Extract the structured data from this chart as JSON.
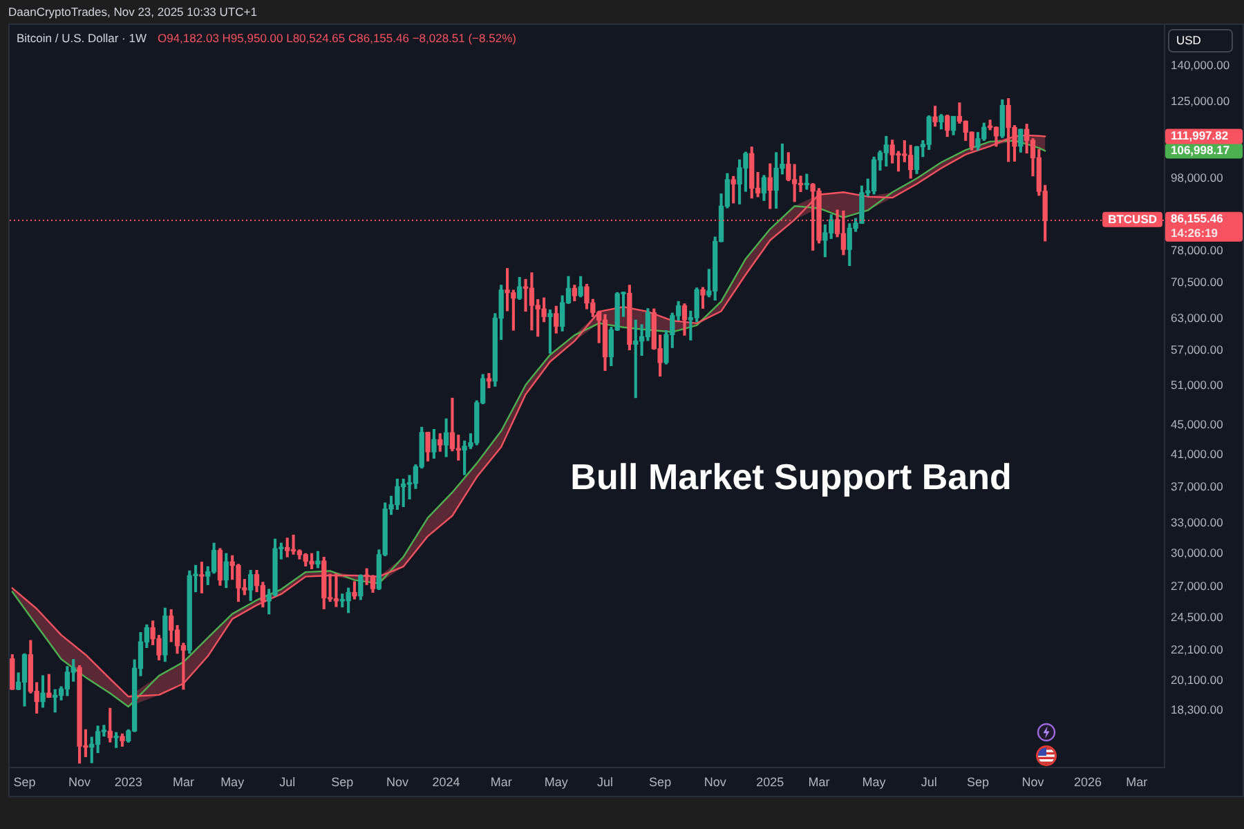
{
  "chart_data": {
    "type": "candlestick",
    "title": "Bitcoin / U.S. Dollar · 1W",
    "subtitle": "O94,182.03 H95,950.00 L80,524.65 C86,155.46 −8,028.51 (−8.52%)",
    "ylabel": "USD",
    "annotations": [
      "DaanCryptoTrades, Nov 23, 2025 10:33 UTC+1",
      "Bull Market Support Band",
      "14:26:19"
    ],
    "x": [
      "2022-08-22",
      "2022-08-29",
      "2022-09-05",
      "2022-09-12",
      "2022-09-19",
      "2022-09-26",
      "2022-10-03",
      "2022-10-10",
      "2022-10-17",
      "2022-10-24",
      "2022-10-31",
      "2022-11-07",
      "2022-11-14",
      "2022-11-21",
      "2022-11-28",
      "2022-12-05",
      "2022-12-12",
      "2022-12-19",
      "2022-12-26",
      "2023-01-02",
      "2023-01-09",
      "2023-01-16",
      "2023-01-23",
      "2023-01-30",
      "2023-02-06",
      "2023-02-13",
      "2023-02-20",
      "2023-02-27",
      "2023-03-06",
      "2023-03-13",
      "2023-03-20",
      "2023-03-27",
      "2023-04-03",
      "2023-04-10",
      "2023-04-17",
      "2023-04-24",
      "2023-05-01",
      "2023-05-08",
      "2023-05-15",
      "2023-05-22",
      "2023-05-29",
      "2023-06-05",
      "2023-06-12",
      "2023-06-19",
      "2023-06-26",
      "2023-07-03",
      "2023-07-10",
      "2023-07-17",
      "2023-07-24",
      "2023-07-31",
      "2023-08-07",
      "2023-08-14",
      "2023-08-21",
      "2023-08-28",
      "2023-09-04",
      "2023-09-11",
      "2023-09-18",
      "2023-09-25",
      "2023-10-02",
      "2023-10-09",
      "2023-10-16",
      "2023-10-23",
      "2023-10-30",
      "2023-11-06",
      "2023-11-13",
      "2023-11-20",
      "2023-11-27",
      "2023-12-04",
      "2023-12-11",
      "2023-12-18",
      "2023-12-25",
      "2024-01-01",
      "2024-01-08",
      "2024-01-15",
      "2024-01-22",
      "2024-01-29",
      "2024-02-05",
      "2024-02-12",
      "2024-02-19",
      "2024-02-26",
      "2024-03-04",
      "2024-03-11",
      "2024-03-18",
      "2024-03-25",
      "2024-04-01",
      "2024-04-08",
      "2024-04-15",
      "2024-04-22",
      "2024-04-29",
      "2024-05-06",
      "2024-05-13",
      "2024-05-20",
      "2024-05-27",
      "2024-06-03",
      "2024-06-10",
      "2024-06-17",
      "2024-06-24",
      "2024-07-01",
      "2024-07-08",
      "2024-07-15",
      "2024-07-22",
      "2024-07-29",
      "2024-08-05",
      "2024-08-12",
      "2024-08-19",
      "2024-08-26",
      "2024-09-02",
      "2024-09-09",
      "2024-09-16",
      "2024-09-23",
      "2024-09-30",
      "2024-10-07",
      "2024-10-14",
      "2024-10-21",
      "2024-10-28",
      "2024-11-04",
      "2024-11-11",
      "2024-11-18",
      "2024-11-25",
      "2024-12-02",
      "2024-12-09",
      "2024-12-16",
      "2024-12-23",
      "2024-12-30",
      "2025-01-06",
      "2025-01-13",
      "2025-01-20",
      "2025-01-27",
      "2025-02-03",
      "2025-02-10",
      "2025-02-17",
      "2025-02-24",
      "2025-03-03",
      "2025-03-10",
      "2025-03-17",
      "2025-03-24",
      "2025-03-31",
      "2025-04-07",
      "2025-04-14",
      "2025-04-21",
      "2025-04-28",
      "2025-05-05",
      "2025-05-12",
      "2025-05-19",
      "2025-05-26",
      "2025-06-02",
      "2025-06-09",
      "2025-06-16",
      "2025-06-23",
      "2025-06-30",
      "2025-07-07",
      "2025-07-14",
      "2025-07-21",
      "2025-07-28",
      "2025-08-04",
      "2025-08-11",
      "2025-08-18",
      "2025-08-25",
      "2025-09-01",
      "2025-09-08",
      "2025-09-15",
      "2025-09-22",
      "2025-09-29",
      "2025-10-06",
      "2025-10-13",
      "2025-10-20",
      "2025-10-27",
      "2025-11-03",
      "2025-11-10",
      "2025-11-17"
    ],
    "ohlc": [
      [
        21520,
        21800,
        19530,
        19550
      ],
      [
        19550,
        20580,
        19520,
        19990
      ],
      [
        19990,
        21860,
        18540,
        21800
      ],
      [
        21800,
        22800,
        19320,
        19420
      ],
      [
        19420,
        19960,
        18130,
        18800
      ],
      [
        18800,
        20400,
        18470,
        19310
      ],
      [
        19310,
        20480,
        19050,
        19060
      ],
      [
        19060,
        19520,
        18190,
        19180
      ],
      [
        19180,
        19700,
        18900,
        19570
      ],
      [
        19570,
        21000,
        19160,
        20630
      ],
      [
        20630,
        21470,
        20050,
        20920
      ],
      [
        20920,
        21050,
        15480,
        16330
      ],
      [
        16330,
        17200,
        15800,
        16280
      ],
      [
        16280,
        16800,
        15500,
        16430
      ],
      [
        16430,
        17400,
        16000,
        17100
      ],
      [
        17100,
        17440,
        16860,
        17120
      ],
      [
        17120,
        18400,
        16550,
        16780
      ],
      [
        16780,
        17050,
        16260,
        16840
      ],
      [
        16840,
        16970,
        16330,
        16610
      ],
      [
        16610,
        17200,
        16540,
        17130
      ],
      [
        17130,
        21450,
        17100,
        20880
      ],
      [
        20880,
        23380,
        20400,
        22700
      ],
      [
        22700,
        23950,
        22300,
        23740
      ],
      [
        23740,
        24250,
        22500,
        22930
      ],
      [
        22930,
        23170,
        21450,
        21790
      ],
      [
        21790,
        25250,
        21350,
        24630
      ],
      [
        24630,
        25130,
        22720,
        23560
      ],
      [
        23560,
        23900,
        21900,
        22430
      ],
      [
        22430,
        22600,
        19550,
        22120
      ],
      [
        22120,
        28400,
        21900,
        27980
      ],
      [
        27980,
        28900,
        26600,
        27990
      ],
      [
        27990,
        29200,
        26500,
        27940
      ],
      [
        27940,
        28780,
        27200,
        28330
      ],
      [
        28330,
        31000,
        28200,
        30300
      ],
      [
        30300,
        30480,
        27150,
        27600
      ],
      [
        27600,
        30000,
        26950,
        29230
      ],
      [
        29230,
        29800,
        27660,
        28900
      ],
      [
        28900,
        29000,
        25800,
        26920
      ],
      [
        26920,
        27650,
        26350,
        26750
      ],
      [
        26750,
        28450,
        25870,
        28070
      ],
      [
        28070,
        28450,
        26600,
        27120
      ],
      [
        27120,
        27400,
        25350,
        25840
      ],
      [
        25840,
        26800,
        24800,
        26340
      ],
      [
        26340,
        31400,
        26250,
        30470
      ],
      [
        30470,
        31000,
        29500,
        30580
      ],
      [
        30580,
        31500,
        29700,
        30280
      ],
      [
        30280,
        31800,
        29950,
        30250
      ],
      [
        30250,
        30350,
        29500,
        29900
      ],
      [
        29900,
        29990,
        28850,
        29280
      ],
      [
        29280,
        30000,
        28600,
        29030
      ],
      [
        29030,
        30200,
        28700,
        29300
      ],
      [
        29300,
        29650,
        25200,
        26090
      ],
      [
        26090,
        28100,
        25800,
        26000
      ],
      [
        26000,
        28150,
        25380,
        25840
      ],
      [
        25840,
        26400,
        25350,
        25850
      ],
      [
        25850,
        26900,
        24900,
        26530
      ],
      [
        26530,
        27450,
        26000,
        26250
      ],
      [
        26250,
        28050,
        25950,
        27970
      ],
      [
        27970,
        28600,
        27200,
        27920
      ],
      [
        27920,
        28000,
        26550,
        26860
      ],
      [
        26860,
        30350,
        26780,
        29900
      ],
      [
        29900,
        35200,
        29800,
        34530
      ],
      [
        34530,
        35950,
        33950,
        35010
      ],
      [
        35010,
        37950,
        34500,
        37060
      ],
      [
        37060,
        37950,
        34800,
        37360
      ],
      [
        37360,
        38400,
        35650,
        37450
      ],
      [
        37450,
        39700,
        36850,
        39460
      ],
      [
        39460,
        44700,
        39300,
        43980
      ],
      [
        43980,
        44000,
        40200,
        41370
      ],
      [
        41370,
        44400,
        40550,
        43000
      ],
      [
        43000,
        43800,
        41450,
        42280
      ],
      [
        42280,
        45900,
        40750,
        43940
      ],
      [
        43940,
        49000,
        41500,
        41800
      ],
      [
        41800,
        43600,
        40300,
        41600
      ],
      [
        41600,
        42800,
        38500,
        42100
      ],
      [
        42100,
        43800,
        41800,
        42580
      ],
      [
        42580,
        48600,
        42300,
        48300
      ],
      [
        48300,
        52800,
        48150,
        52120
      ],
      [
        52120,
        52980,
        50650,
        51730
      ],
      [
        51730,
        64000,
        50900,
        63100
      ],
      [
        63100,
        70000,
        59000,
        68950
      ],
      [
        68950,
        73800,
        64600,
        68370
      ],
      [
        68370,
        68900,
        60750,
        67200
      ],
      [
        67200,
        71750,
        66950,
        69640
      ],
      [
        69640,
        71300,
        64500,
        69350
      ],
      [
        69350,
        72800,
        60800,
        65700
      ],
      [
        65700,
        66900,
        59600,
        64950
      ],
      [
        64950,
        67250,
        62400,
        63400
      ],
      [
        63400,
        64750,
        56500,
        64000
      ],
      [
        64000,
        65500,
        60200,
        61500
      ],
      [
        61500,
        67700,
        60600,
        66250
      ],
      [
        66250,
        71950,
        66100,
        69300
      ],
      [
        69300,
        70000,
        66650,
        67750
      ],
      [
        67750,
        71950,
        67500,
        69650
      ],
      [
        69650,
        70200,
        65000,
        66200
      ],
      [
        66200,
        66950,
        63400,
        64250
      ],
      [
        64250,
        64500,
        58400,
        62700
      ],
      [
        62700,
        63800,
        53500,
        55850
      ],
      [
        55850,
        61300,
        54300,
        60800
      ],
      [
        60800,
        68400,
        60700,
        68150
      ],
      [
        68150,
        68500,
        63450,
        68250
      ],
      [
        68250,
        70000,
        57100,
        58100
      ],
      [
        58100,
        62700,
        49100,
        58700
      ],
      [
        58700,
        61800,
        56100,
        59500
      ],
      [
        59500,
        65000,
        58800,
        64200
      ],
      [
        64200,
        64950,
        57200,
        57300
      ],
      [
        57300,
        59800,
        52550,
        54850
      ],
      [
        54850,
        60650,
        54600,
        59900
      ],
      [
        59900,
        64100,
        57500,
        63600
      ],
      [
        63600,
        66500,
        62700,
        65600
      ],
      [
        65600,
        66000,
        59800,
        62800
      ],
      [
        62800,
        64500,
        58900,
        63200
      ],
      [
        63200,
        69400,
        62400,
        69000
      ],
      [
        69000,
        69500,
        65100,
        67900
      ],
      [
        67900,
        73600,
        67500,
        68750
      ],
      [
        68750,
        81500,
        66800,
        80400
      ],
      [
        80400,
        93400,
        80300,
        89850
      ],
      [
        89850,
        99600,
        89400,
        97700
      ],
      [
        97700,
        98700,
        90800,
        96400
      ],
      [
        96400,
        104000,
        90500,
        101400
      ],
      [
        101400,
        106550,
        94200,
        106100
      ],
      [
        106100,
        108300,
        92200,
        95100
      ],
      [
        95100,
        99950,
        92600,
        93700
      ],
      [
        93700,
        99000,
        91500,
        98300
      ],
      [
        98300,
        102700,
        89200,
        94500
      ],
      [
        94500,
        106400,
        89300,
        101300
      ],
      [
        101300,
        109350,
        99500,
        102600
      ],
      [
        102600,
        106400,
        97400,
        97700
      ],
      [
        97700,
        102500,
        91200,
        96500
      ],
      [
        96500,
        98800,
        94100,
        96150
      ],
      [
        96150,
        99400,
        94800,
        96250
      ],
      [
        96250,
        96500,
        78200,
        94250
      ],
      [
        94250,
        95000,
        80000,
        80700
      ],
      [
        80700,
        84700,
        76600,
        82600
      ],
      [
        82600,
        87450,
        81150,
        86100
      ],
      [
        86100,
        88750,
        81600,
        82400
      ],
      [
        82400,
        88500,
        77100,
        78400
      ],
      [
        78400,
        85000,
        74500,
        83800
      ],
      [
        83800,
        86450,
        83000,
        85150
      ],
      [
        85150,
        95750,
        85100,
        93750
      ],
      [
        93750,
        97900,
        92800,
        94300
      ],
      [
        94300,
        104900,
        93400,
        104000
      ],
      [
        104000,
        107000,
        100700,
        106400
      ],
      [
        106400,
        112000,
        102000,
        109000
      ],
      [
        109000,
        110700,
        103000,
        105700
      ],
      [
        105700,
        106800,
        100400,
        105600
      ],
      [
        105600,
        110500,
        103400,
        105500
      ],
      [
        105500,
        108900,
        98200,
        100900
      ],
      [
        100900,
        108500,
        99600,
        108400
      ],
      [
        108400,
        110500,
        105100,
        109200
      ],
      [
        109200,
        119500,
        107500,
        119100
      ],
      [
        119100,
        123200,
        115700,
        117300
      ],
      [
        117300,
        120000,
        114700,
        119450
      ],
      [
        119450,
        119800,
        112000,
        114200
      ],
      [
        114200,
        119300,
        112600,
        119300
      ],
      [
        119300,
        124500,
        116800,
        117500
      ],
      [
        117500,
        117600,
        110600,
        113500
      ],
      [
        113500,
        113600,
        107300,
        108300
      ],
      [
        108300,
        113400,
        107300,
        111200
      ],
      [
        111200,
        116800,
        110600,
        115300
      ],
      [
        115300,
        117900,
        114400,
        115250
      ],
      [
        115250,
        115400,
        108600,
        112200
      ],
      [
        112200,
        125700,
        111600,
        123500
      ],
      [
        123500,
        126200,
        103500,
        115200
      ],
      [
        115200,
        115900,
        103600,
        108600
      ],
      [
        108600,
        114600,
        106600,
        114500
      ],
      [
        114500,
        116400,
        106300,
        110600
      ],
      [
        110600,
        111200,
        98900,
        104700
      ],
      [
        104700,
        107500,
        93000,
        94180
      ],
      [
        94182.03,
        95950,
        80524.65,
        86155.46
      ]
    ],
    "colors": [
      "#f7525f",
      "#22ab94",
      "#22ab94",
      "#f7525f",
      "#f7525f",
      "#22ab94",
      "#f7525f",
      "#22ab94",
      "#22ab94",
      "#22ab94",
      "#22ab94",
      "#f7525f",
      "#f7525f",
      "#22ab94",
      "#22ab94",
      "#22ab94",
      "#f7525f",
      "#22ab94",
      "#f7525f",
      "#22ab94",
      "#22ab94",
      "#22ab94",
      "#22ab94",
      "#f7525f",
      "#f7525f",
      "#22ab94",
      "#f7525f",
      "#f7525f",
      "#f7525f",
      "#22ab94",
      "#22ab94",
      "#f7525f",
      "#22ab94",
      "#22ab94",
      "#f7525f",
      "#22ab94",
      "#f7525f",
      "#f7525f",
      "#f7525f",
      "#22ab94",
      "#f7525f",
      "#f7525f",
      "#22ab94",
      "#22ab94",
      "#22ab94",
      "#f7525f",
      "#f7525f",
      "#f7525f",
      "#f7525f",
      "#f7525f",
      "#22ab94",
      "#f7525f",
      "#f7525f",
      "#f7525f",
      "#22ab94",
      "#22ab94",
      "#f7525f",
      "#22ab94",
      "#f7525f",
      "#f7525f",
      "#22ab94",
      "#22ab94",
      "#22ab94",
      "#22ab94",
      "#22ab94",
      "#22ab94",
      "#22ab94",
      "#22ab94",
      "#f7525f",
      "#22ab94",
      "#f7525f",
      "#22ab94",
      "#f7525f",
      "#f7525f",
      "#22ab94",
      "#22ab94",
      "#22ab94",
      "#22ab94",
      "#f7525f",
      "#22ab94",
      "#22ab94",
      "#f7525f",
      "#f7525f",
      "#22ab94",
      "#f7525f",
      "#f7525f",
      "#f7525f",
      "#f7525f",
      "#22ab94",
      "#f7525f",
      "#22ab94",
      "#22ab94",
      "#f7525f",
      "#22ab94",
      "#f7525f",
      "#f7525f",
      "#f7525f",
      "#f7525f",
      "#22ab94",
      "#22ab94",
      "#22ab94",
      "#f7525f",
      "#22ab94",
      "#22ab94",
      "#22ab94",
      "#f7525f",
      "#f7525f",
      "#22ab94",
      "#22ab94",
      "#22ab94",
      "#f7525f",
      "#22ab94",
      "#22ab94",
      "#f7525f",
      "#22ab94",
      "#22ab94",
      "#22ab94",
      "#22ab94",
      "#f7525f",
      "#22ab94",
      "#22ab94",
      "#f7525f",
      "#f7525f",
      "#22ab94",
      "#f7525f",
      "#22ab94",
      "#22ab94",
      "#f7525f",
      "#f7525f",
      "#f7525f",
      "#22ab94",
      "#f7525f",
      "#f7525f",
      "#22ab94",
      "#22ab94",
      "#f7525f",
      "#f7525f",
      "#22ab94",
      "#22ab94",
      "#22ab94",
      "#22ab94",
      "#22ab94",
      "#22ab94",
      "#22ab94",
      "#f7525f",
      "#f7525f",
      "#f7525f",
      "#f7525f",
      "#22ab94",
      "#22ab94",
      "#22ab94",
      "#f7525f",
      "#22ab94",
      "#f7525f",
      "#22ab94",
      "#f7525f",
      "#f7525f",
      "#f7525f",
      "#22ab94",
      "#22ab94",
      "#f7525f",
      "#f7525f",
      "#22ab94",
      "#f7525f",
      "#f7525f",
      "#22ab94",
      "#f7525f",
      "#f7525f",
      "#f7525f",
      "#f7525f"
    ],
    "series": [
      {
        "type": "line",
        "color": "#f7525f",
        "x": [
          "2022-08-22",
          "2022-09-19",
          "2022-10-17",
          "2022-11-14",
          "2022-12-12",
          "2023-01-02",
          "2023-02-06",
          "2023-03-06",
          "2023-04-03",
          "2023-05-01",
          "2023-05-29",
          "2023-06-26",
          "2023-07-24",
          "2023-08-21",
          "2023-09-18",
          "2023-10-16",
          "2023-11-13",
          "2023-12-11",
          "2024-01-08",
          "2024-02-05",
          "2024-03-04",
          "2024-04-01",
          "2024-04-29",
          "2024-05-27",
          "2024-06-24",
          "2024-07-22",
          "2024-08-19",
          "2024-09-16",
          "2024-10-14",
          "2024-11-11",
          "2024-12-09",
          "2025-01-06",
          "2025-02-03",
          "2025-03-03",
          "2025-03-31",
          "2025-04-28",
          "2025-05-26",
          "2025-06-23",
          "2025-07-21",
          "2025-08-18",
          "2025-09-15",
          "2025-10-13",
          "2025-10-27",
          "2025-11-10",
          "2025-11-17"
        ],
        "values": [
          26900,
          25200,
          23200,
          21800,
          20200,
          19100,
          19200,
          19900,
          21700,
          24400,
          25500,
          26400,
          27900,
          28000,
          28000,
          27900,
          28800,
          31700,
          33800,
          38200,
          42000,
          49600,
          55000,
          58700,
          64400,
          65400,
          64400,
          62600,
          62100,
          64500,
          72400,
          80700,
          86100,
          93200,
          93900,
          92600,
          92300,
          96400,
          101300,
          105800,
          108600,
          112100,
          112400,
          112200,
          111997.82
        ],
        "lower": [
          26600,
          23900,
          21500,
          20300,
          19300,
          18500,
          19200,
          19900,
          21700,
          24400,
          25500,
          26400,
          27900,
          28000,
          27600,
          27300,
          28800,
          31700,
          33800,
          38200,
          42000,
          49600,
          55000,
          58700,
          62100,
          61300,
          60800,
          60400,
          61700,
          64500,
          72400,
          80700,
          86100,
          89300,
          86700,
          88700,
          92300,
          96400,
          101300,
          105800,
          108600,
          110500,
          109300,
          108000,
          106998.17
        ],
        "upper": [
          26900,
          25200,
          23200,
          21800,
          20200,
          19100,
          20400,
          21300,
          23000,
          24800,
          25900,
          26800,
          28300,
          28400,
          28000,
          27900,
          29700,
          33600,
          36400,
          39900,
          44200,
          51100,
          56200,
          59800,
          64400,
          65400,
          64400,
          62600,
          62100,
          66500,
          76100,
          83600,
          89900,
          93200,
          93900,
          92600,
          93900,
          98100,
          103200,
          107300,
          110200,
          112100,
          112400,
          112200,
          111997.82
        ]
      },
      {
        "type": "line",
        "color": "#4caf50",
        "x": [
          "2022-08-22",
          "2022-09-19",
          "2022-10-17",
          "2022-11-14",
          "2022-12-12",
          "2023-01-02",
          "2023-02-06",
          "2023-03-06",
          "2023-04-03",
          "2023-05-01",
          "2023-05-29",
          "2023-06-26",
          "2023-07-24",
          "2023-08-21",
          "2023-09-18",
          "2023-10-16",
          "2023-11-13",
          "2023-12-11",
          "2024-01-08",
          "2024-02-05",
          "2024-03-04",
          "2024-04-01",
          "2024-04-29",
          "2024-05-27",
          "2024-06-24",
          "2024-07-22",
          "2024-08-19",
          "2024-09-16",
          "2024-10-14",
          "2024-11-11",
          "2024-12-09",
          "2025-01-06",
          "2025-02-03",
          "2025-03-03",
          "2025-03-31",
          "2025-04-28",
          "2025-05-26",
          "2025-06-23",
          "2025-07-21",
          "2025-08-18",
          "2025-09-15",
          "2025-10-13",
          "2025-10-27",
          "2025-11-10",
          "2025-11-17"
        ],
        "values": [
          26600,
          23900,
          21500,
          20300,
          19300,
          18500,
          20400,
          21300,
          23000,
          24800,
          25900,
          26800,
          28300,
          28400,
          27600,
          27300,
          29700,
          33600,
          36400,
          39900,
          44200,
          51100,
          56200,
          59800,
          62100,
          61300,
          60800,
          60400,
          61700,
          66500,
          76100,
          83600,
          89900,
          89300,
          86700,
          88700,
          93900,
          98100,
          103200,
          107300,
          110200,
          110500,
          109300,
          108000,
          106998.17
        ]
      }
    ],
    "ref_lines": [
      {
        "axis": "y",
        "value": 86155.46,
        "label": "BTCUSD",
        "color": "#f7525f",
        "line_style": "dotted"
      }
    ],
    "xlim": [
      "2022-08-19",
      "2026-04-02"
    ],
    "xticks": [
      {
        "value": "2022-09-05",
        "label": "Sep"
      },
      {
        "value": "2022-11-07",
        "label": "Nov"
      },
      {
        "value": "2023-01-02",
        "label": "2023"
      },
      {
        "value": "2023-03-06",
        "label": "Mar"
      },
      {
        "value": "2023-05-01",
        "label": "May"
      },
      {
        "value": "2023-07-03",
        "label": "Jul"
      },
      {
        "value": "2023-09-04",
        "label": "Sep"
      },
      {
        "value": "2023-11-06",
        "label": "Nov"
      },
      {
        "value": "2024-01-01",
        "label": "2024"
      },
      {
        "value": "2024-03-04",
        "label": "Mar"
      },
      {
        "value": "2024-05-06",
        "label": "May"
      },
      {
        "value": "2024-07-01",
        "label": "Jul"
      },
      {
        "value": "2024-09-02",
        "label": "Sep"
      },
      {
        "value": "2024-11-04",
        "label": "Nov"
      },
      {
        "value": "2025-01-06",
        "label": "2025"
      },
      {
        "value": "2025-03-03",
        "label": "Mar"
      },
      {
        "value": "2025-05-05",
        "label": "May"
      },
      {
        "value": "2025-07-07",
        "label": "Jul"
      },
      {
        "value": "2025-09-01",
        "label": "Sep"
      },
      {
        "value": "2025-11-03",
        "label": "Nov"
      },
      {
        "value": "2026-01-05",
        "label": "2026"
      },
      {
        "value": "2026-03-02",
        "label": "Mar"
      }
    ],
    "ylim": [
      15300,
      160000
    ],
    "yticks": [
      {
        "value": 18300,
        "label": "18,300.00"
      },
      {
        "value": 20100,
        "label": "20,100.00"
      },
      {
        "value": 22100,
        "label": "22,100.00"
      },
      {
        "value": 24500,
        "label": "24,500.00"
      },
      {
        "value": 27000,
        "label": "27,000.00"
      },
      {
        "value": 30000,
        "label": "30,000.00"
      },
      {
        "value": 33000,
        "label": "33,000.00"
      },
      {
        "value": 37000,
        "label": "37,000.00"
      },
      {
        "value": 41000,
        "label": "41,000.00"
      },
      {
        "value": 45000,
        "label": "45,000.00"
      },
      {
        "value": 51000,
        "label": "51,000.00"
      },
      {
        "value": 57000,
        "label": "57,000.00"
      },
      {
        "value": 63000,
        "label": "63,000.00"
      },
      {
        "value": 70500,
        "label": "70,500.00"
      },
      {
        "value": 78000,
        "label": "78,000.00"
      },
      {
        "value": 86155.46,
        "label": "86,155.46"
      },
      {
        "value": 98000,
        "label": "98,000.00"
      },
      {
        "value": 106998.17,
        "label": "106,998.17"
      },
      {
        "value": 111997.82,
        "label": "111,997.82"
      },
      {
        "value": 125000,
        "label": "125,000.00"
      },
      {
        "value": 140000,
        "label": "140,000.00"
      }
    ],
    "log": true,
    "grid": false,
    "legend": false
  }
}
